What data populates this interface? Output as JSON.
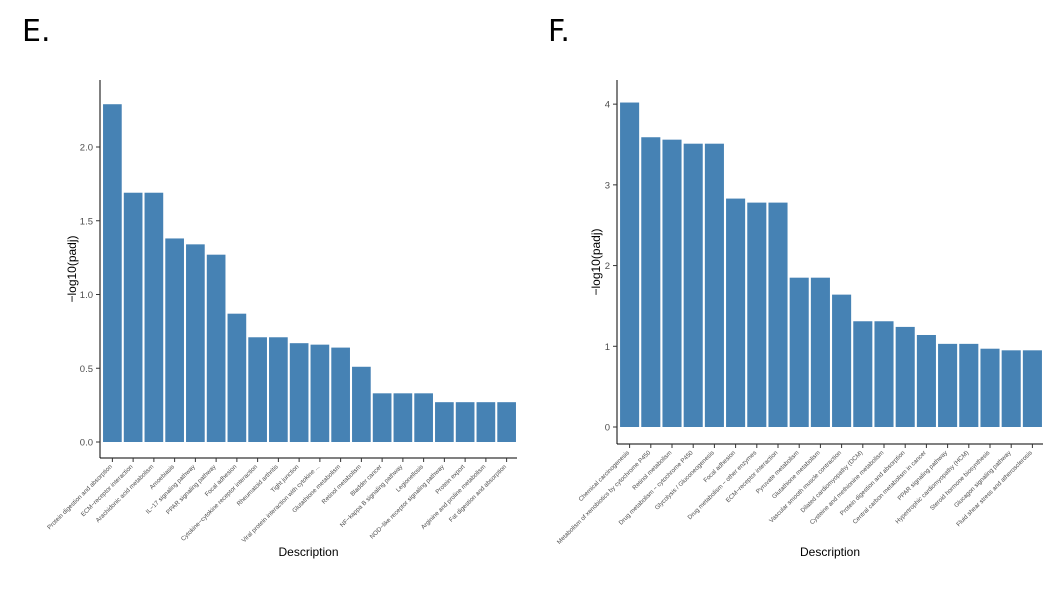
{
  "panels": {
    "e_label": "E.",
    "f_label": "F."
  },
  "colors": {
    "bar": "#4682b4",
    "axis": "#000000"
  },
  "chart_data": [
    {
      "id": "E",
      "type": "bar",
      "xlabel": "Description",
      "ylabel": "−log10(padj)",
      "ylim": [
        0,
        2.4
      ],
      "yticks": [
        0.0,
        0.5,
        1.0,
        1.5,
        2.0
      ],
      "ytick_labels": [
        "0.0",
        "0.5",
        "1.0",
        "1.5",
        "2.0"
      ],
      "categories": [
        "Protein digestion and absorption",
        "ECM−receptor interaction",
        "Arachidonic acid metabolism",
        "Amoebiasis",
        "IL−17 signaling pathway",
        "PPAR signaling pathway",
        "Focal adhesion",
        "Cytokine−cytokine receptor interaction",
        "Rheumatoid arthritis",
        "Tight junction",
        "Viral protein interaction with cytokine ...",
        "Glutathione metabolism",
        "Retinol metabolism",
        "Bladder cancer",
        "NF−kappa B signaling pathway",
        "Legionellosis",
        "NOD−like receptor signaling pathway",
        "Protein export",
        "Arginine and proline metabolism",
        "Fat digestion and absorption"
      ],
      "values": [
        2.29,
        1.69,
        1.69,
        1.38,
        1.34,
        1.27,
        0.87,
        0.71,
        0.71,
        0.67,
        0.66,
        0.64,
        0.51,
        0.33,
        0.33,
        0.33,
        0.27,
        0.27,
        0.27,
        0.27
      ]
    },
    {
      "id": "F",
      "type": "bar",
      "xlabel": "Description",
      "ylabel": "−log10(padj)",
      "ylim": [
        0,
        4.2
      ],
      "yticks": [
        0,
        1,
        2,
        3,
        4
      ],
      "ytick_labels": [
        "0",
        "1",
        "2",
        "3",
        "4"
      ],
      "categories": [
        "Chemical carcinogenesis",
        "Metabolism of xenobiotics by cytochrome P450",
        "Retinol metabolism",
        "Drug metabolism − cytochrome P450",
        "Glycolysis / Gluconeogenesis",
        "Focal adhesion",
        "Drug metabolism − other enzymes",
        "ECM−receptor interaction",
        "Pyruvate metabolism",
        "Glutathione metabolism",
        "Vascular smooth muscle contraction",
        "Dilated cardiomyopathy (DCM)",
        "Cysteine and methionine metabolism",
        "Protein digestion and absorption",
        "Central carbon metabolism in cancer",
        "PPAR signaling pathway",
        "Hypertrophic cardiomyopathy (HCM)",
        "Steroid hormone biosynthesis",
        "Glucagon signaling pathway",
        "Fluid shear stress and atherosclerosis"
      ],
      "values": [
        4.02,
        3.59,
        3.56,
        3.51,
        3.51,
        2.83,
        2.78,
        2.78,
        1.85,
        1.85,
        1.64,
        1.31,
        1.31,
        1.24,
        1.14,
        1.03,
        1.03,
        0.97,
        0.95,
        0.95
      ]
    }
  ]
}
